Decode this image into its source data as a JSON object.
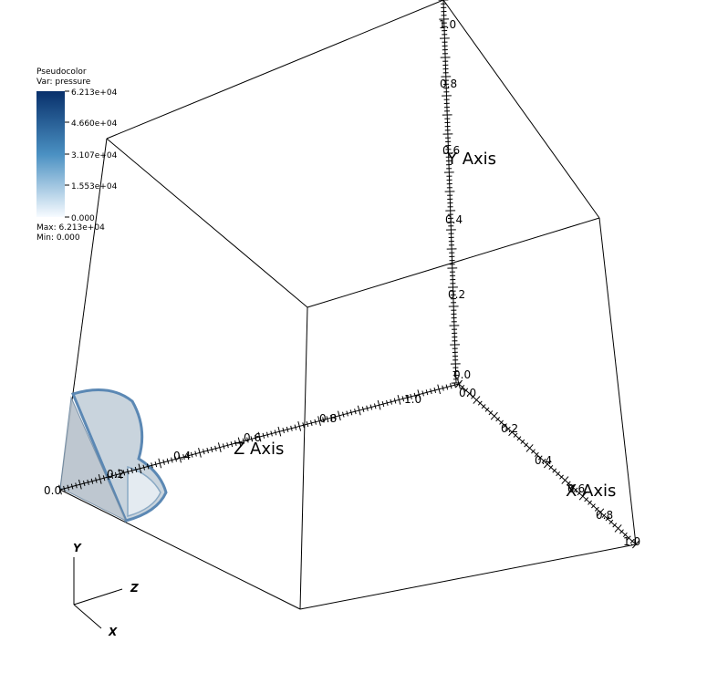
{
  "legend": {
    "plot_type": "Pseudocolor",
    "var_line": "Var: pressure",
    "ticks": [
      "6.213e+04",
      "4.660e+04",
      "3.107e+04",
      "1.553e+04",
      "0.000"
    ],
    "max_line": "Max:  6.213e+04",
    "min_line": "Min:  0.000",
    "colors": {
      "high": "#08306b",
      "mid": "#4a90c2",
      "low": "#f7fbff"
    }
  },
  "axes": {
    "x": {
      "title": "X Axis",
      "ticks": [
        "0.0",
        "0.2",
        "0.4",
        "0.6",
        "0.8",
        "1.0"
      ]
    },
    "y": {
      "title": "Y Axis",
      "ticks": [
        "0.0",
        "0.2",
        "0.4",
        "0.6",
        "0.8",
        "1.0"
      ]
    },
    "z": {
      "title": "Z Axis",
      "ticks": [
        "0.0",
        "0.2",
        "0.4",
        "0.6",
        "0.8",
        "1.0"
      ]
    }
  },
  "triad": {
    "x": "X",
    "y": "Y",
    "z": "Z"
  },
  "colors": {
    "surface_fill": "#c9d4dd",
    "surface_edge": "#5b88b4",
    "inner_fill": "#e4ebf1"
  }
}
